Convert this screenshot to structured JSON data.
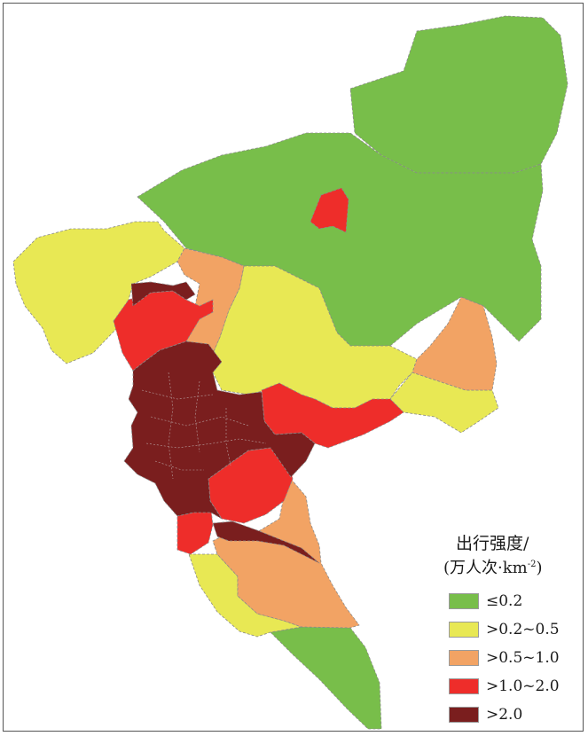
{
  "legend": {
    "title_line1": "出行强度/",
    "title_line2": "(万人次·km",
    "title_superscript": "-2",
    "title_close": ")",
    "items": [
      {
        "label": "≤0.2",
        "color": "#78be4a"
      },
      {
        "label": ">0.2~0.5",
        "color": "#e8e854"
      },
      {
        "label": ">0.5~1.0",
        "color": "#f2a364"
      },
      {
        "label": ">1.0~2.0",
        "color": "#ee2d2a"
      },
      {
        "label": ">2.0",
        "color": "#7a1e1e"
      }
    ]
  },
  "map_colors": {
    "lowest": "#78be4a",
    "low": "#e8e854",
    "medium": "#f2a364",
    "high": "#ee2d2a",
    "highest": "#7a1e1e",
    "border": "#8a8a8a"
  }
}
